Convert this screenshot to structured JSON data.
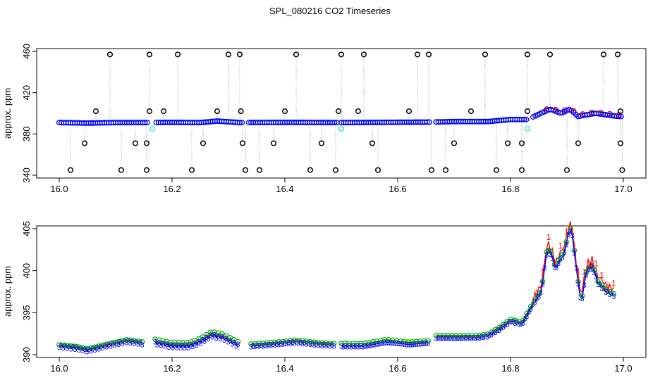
{
  "title": "SPL_080216  CO2 Timeseries",
  "colors": {
    "black": "#000000",
    "blue": "#0000ff",
    "red": "#ff0000",
    "green": "#00b000",
    "cyan": "#40e0e0",
    "grey": "#999999"
  },
  "chart_data": [
    {
      "type": "scatter",
      "name": "top-panel",
      "title": "",
      "xlabel": "",
      "ylabel": "approx. ppm",
      "xlim": [
        16.0,
        17.0
      ],
      "ylim": [
        340,
        460
      ],
      "xticks": [
        "16.0",
        "16.2",
        "16.4",
        "16.6",
        "16.8",
        "17.0"
      ],
      "yticks": [
        "340",
        "380",
        "420",
        "460"
      ],
      "gaps": [
        [
          16.16,
          16.17
        ],
        [
          16.325,
          16.335
        ],
        [
          16.495,
          16.5
        ],
        [
          16.66,
          16.668
        ],
        [
          16.83,
          16.84
        ]
      ],
      "baseline": [
        [
          16.0,
          391
        ],
        [
          16.05,
          390.5
        ],
        [
          16.1,
          391
        ],
        [
          16.15,
          391
        ],
        [
          16.2,
          391.2
        ],
        [
          16.25,
          391
        ],
        [
          16.28,
          392.5
        ],
        [
          16.32,
          391
        ],
        [
          16.4,
          391.2
        ],
        [
          16.5,
          391
        ],
        [
          16.6,
          391.3
        ],
        [
          16.66,
          391.5
        ],
        [
          16.7,
          392
        ],
        [
          16.76,
          392
        ],
        [
          16.8,
          394
        ],
        [
          16.83,
          394
        ],
        [
          16.85,
          399
        ],
        [
          16.87,
          404
        ],
        [
          16.89,
          400
        ],
        [
          16.905,
          404
        ],
        [
          16.92,
          397
        ],
        [
          16.95,
          400
        ],
        [
          16.99,
          397
        ]
      ],
      "outliers_high": [
        16.09,
        16.16,
        16.21,
        16.3,
        16.32,
        16.42,
        16.5,
        16.54,
        16.635,
        16.655,
        16.755,
        16.83,
        16.87,
        16.965,
        16.99
      ],
      "outliers_mid_high": [
        16.065,
        16.16,
        16.185,
        16.28,
        16.322,
        16.4,
        16.495,
        16.53,
        16.62,
        16.73,
        16.83,
        16.995
      ],
      "outliers_mid_low": [
        16.045,
        16.135,
        16.155,
        16.255,
        16.325,
        16.38,
        16.465,
        16.555,
        16.7,
        16.795,
        16.82,
        16.92,
        16.995
      ],
      "outliers_low": [
        16.02,
        16.11,
        16.155,
        16.235,
        16.33,
        16.355,
        16.445,
        16.49,
        16.565,
        16.66,
        16.685,
        16.775,
        16.82,
        16.9,
        16.998
      ],
      "outlier_values": {
        "high": 457,
        "mid_high": 402,
        "mid_low": 371,
        "low": 345
      },
      "cyan_points": [
        [
          16.165,
          385
        ],
        [
          16.5,
          385
        ],
        [
          16.83,
          385
        ]
      ]
    },
    {
      "type": "line",
      "name": "bottom-panel",
      "title": "",
      "xlabel": "",
      "ylabel": "approx. ppm",
      "xlim": [
        16.0,
        17.0
      ],
      "ylim": [
        390,
        405
      ],
      "xticks": [
        "16.0",
        "16.2",
        "16.4",
        "16.6",
        "16.8",
        "17.0"
      ],
      "yticks": [
        "390",
        "395",
        "400",
        "405"
      ],
      "series": [
        {
          "name": "1",
          "color": "red",
          "marker": "1"
        },
        {
          "name": "3",
          "color": "blue",
          "marker": "3"
        },
        {
          "name": "green",
          "color": "green",
          "marker": "o"
        }
      ],
      "segments": [
        [
          [
            16.0,
            391
          ],
          [
            16.03,
            390.8
          ],
          [
            16.05,
            390.5
          ],
          [
            16.08,
            391
          ],
          [
            16.1,
            391.3
          ],
          [
            16.12,
            391.6
          ],
          [
            16.15,
            391.3
          ]
        ],
        [
          [
            16.17,
            391.4
          ],
          [
            16.2,
            391
          ],
          [
            16.23,
            391
          ],
          [
            16.25,
            391.5
          ],
          [
            16.27,
            392.3
          ],
          [
            16.29,
            392
          ],
          [
            16.32,
            391
          ]
        ],
        [
          [
            16.34,
            391
          ],
          [
            16.38,
            391.2
          ],
          [
            16.42,
            391.5
          ],
          [
            16.46,
            391.2
          ],
          [
            16.49,
            391.1
          ]
        ],
        [
          [
            16.5,
            391
          ],
          [
            16.54,
            391
          ],
          [
            16.58,
            391.5
          ],
          [
            16.62,
            391.2
          ],
          [
            16.655,
            391.4
          ]
        ],
        [
          [
            16.668,
            392
          ],
          [
            16.7,
            392
          ],
          [
            16.74,
            392
          ],
          [
            16.76,
            392.2
          ],
          [
            16.78,
            393
          ],
          [
            16.8,
            394
          ],
          [
            16.82,
            393.6
          ],
          [
            16.84,
            396
          ],
          [
            16.855,
            397.5
          ],
          [
            16.865,
            402.5
          ],
          [
            16.872,
            402
          ],
          [
            16.88,
            400
          ],
          [
            16.885,
            401
          ],
          [
            16.895,
            402
          ],
          [
            16.905,
            405
          ],
          [
            16.91,
            404
          ],
          [
            16.915,
            401
          ],
          [
            16.925,
            396
          ],
          [
            16.935,
            400
          ],
          [
            16.945,
            400.5
          ],
          [
            16.955,
            398.5
          ],
          [
            16.97,
            397.5
          ],
          [
            16.985,
            397
          ]
        ]
      ]
    }
  ]
}
